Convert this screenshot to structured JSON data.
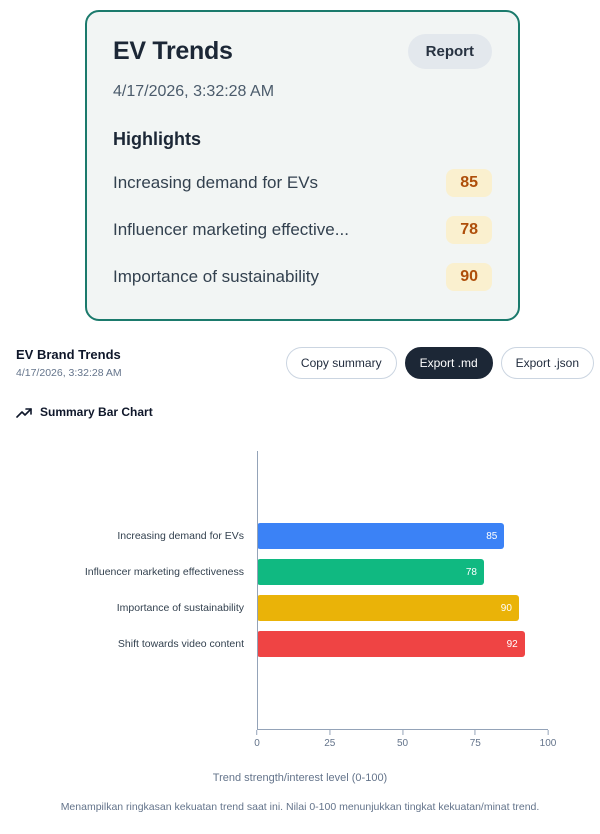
{
  "report_card": {
    "title": "EV Trends",
    "badge": "Report",
    "timestamp": "4/17/2026, 3:32:28 AM",
    "highlights_title": "Highlights",
    "highlights": [
      {
        "label": "Increasing demand for EVs",
        "value": "85"
      },
      {
        "label": "Influencer marketing effective...",
        "value": "78"
      },
      {
        "label": "Importance of sustainability",
        "value": "90"
      }
    ]
  },
  "toolbar": {
    "title": "EV Brand Trends",
    "timestamp": "4/17/2026, 3:32:28 AM",
    "buttons": [
      {
        "label": "Copy summary"
      },
      {
        "label": "Export .md"
      },
      {
        "label": "Export .json"
      }
    ]
  },
  "chart_section": {
    "heading": "Summary Bar Chart"
  },
  "chart_data": {
    "type": "bar",
    "orientation": "horizontal",
    "categories": [
      "Increasing demand for EVs",
      "Influencer marketing effectiveness",
      "Importance of sustainability",
      "Shift towards video content"
    ],
    "values": [
      85,
      78,
      90,
      92
    ],
    "colors": [
      "#3b82f6",
      "#10b981",
      "#eab308",
      "#ef4444"
    ],
    "xticks": [
      0,
      25,
      50,
      75,
      100
    ],
    "xlim": [
      0,
      100
    ],
    "xlabel": "Trend strength/interest level (0-100)",
    "caption": "Menampilkan ringkasan kekuatan trend saat ini. Nilai 0-100 menunjukkan tingkat kekuatan/minat trend.",
    "grid": false,
    "legend": false
  },
  "colors": {
    "card_border": "#1b7a6c",
    "card_background": "#f2f5f4",
    "highlight_badge_bg": "#faf0cf",
    "highlight_badge_text": "#ae4e0a",
    "dark_button": "#1c2736"
  }
}
